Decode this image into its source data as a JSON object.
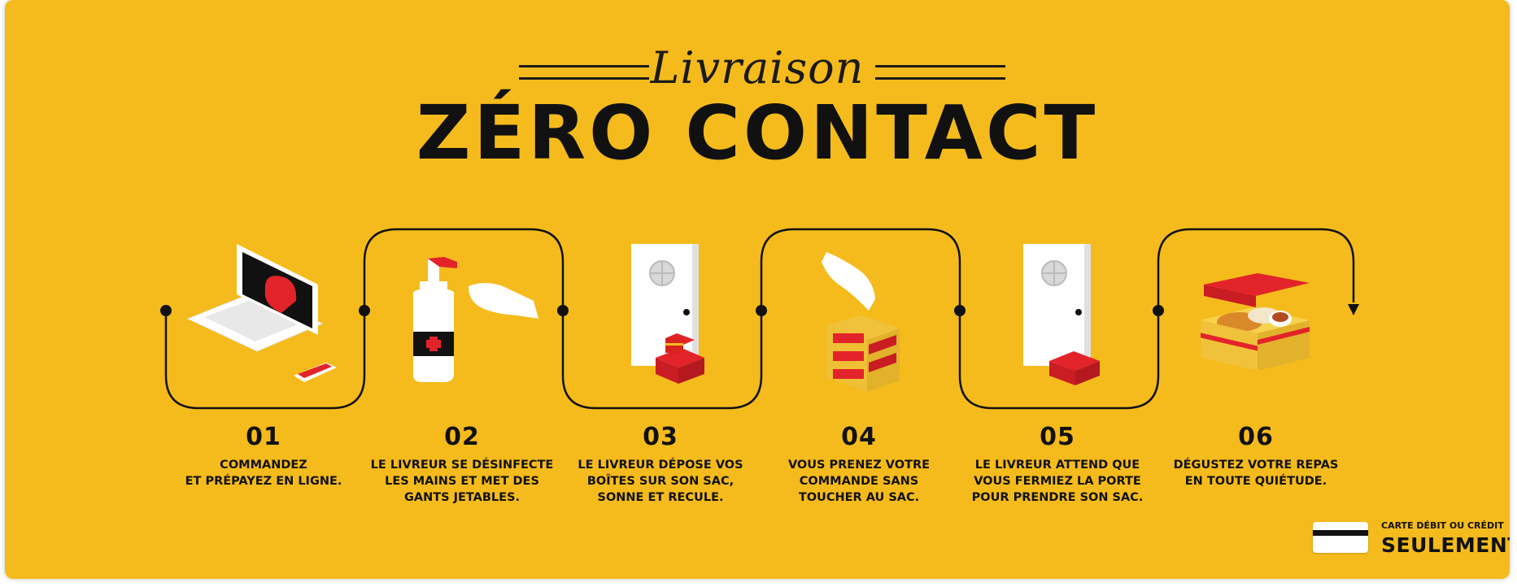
{
  "header": {
    "script_title": "Livraison",
    "main_title": "ZÉRO CONTACT"
  },
  "steps": [
    {
      "number": "01",
      "text": "Commandez\net prépayez en ligne."
    },
    {
      "number": "02",
      "text": "Le livreur se désinfecte\nles mains et met des\ngants jetables."
    },
    {
      "number": "03",
      "text": "Le livreur dépose vos\nboîtes sur son sac,\nsonne et recule."
    },
    {
      "number": "04",
      "text": "Vous prenez votre\ncommande sans\ntoucher au sac."
    },
    {
      "number": "05",
      "text": "Le livreur attend que\nvous fermiez la porte\npour prendre son sac."
    },
    {
      "number": "06",
      "text": "Dégustez votre repas\nen toute quiétude."
    }
  ],
  "payment": {
    "small": "CARTE DÉBIT OU CRÉDIT",
    "big": "SEULEMENT"
  },
  "colors": {
    "background": "#f5bb1c",
    "ink": "#111111",
    "red": "#e3232a",
    "white": "#ffffff"
  }
}
